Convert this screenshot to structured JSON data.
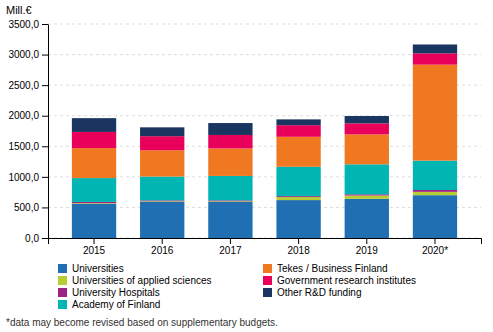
{
  "chart_data": {
    "type": "bar",
    "stacked": true,
    "y_label": "Mill.€",
    "categories": [
      "2015",
      "2016",
      "2017",
      "2018",
      "2019",
      "2020*"
    ],
    "series": [
      {
        "name": "Universities",
        "color": "#1f6fb2",
        "values": [
          560,
          590,
          590,
          620,
          640,
          700
        ]
      },
      {
        "name": "Universities of applied sciences",
        "color": "#b8cc34",
        "values": [
          10,
          10,
          10,
          50,
          55,
          55
        ]
      },
      {
        "name": "University Hospitals",
        "color": "#9b2483",
        "values": [
          20,
          15,
          15,
          15,
          20,
          30
        ]
      },
      {
        "name": "Academy of Finland",
        "color": "#00b5b2",
        "values": [
          390,
          390,
          400,
          480,
          490,
          480
        ]
      },
      {
        "name": "Tekes / Business Finland",
        "color": "#f07820",
        "values": [
          490,
          430,
          450,
          490,
          490,
          1570
        ]
      },
      {
        "name": "Government research institutes",
        "color": "#e8005a",
        "values": [
          265,
          230,
          220,
          190,
          180,
          185
        ]
      },
      {
        "name": "Other R&D funding",
        "color": "#1a3560",
        "values": [
          225,
          145,
          195,
          95,
          120,
          145
        ]
      }
    ],
    "ylim": [
      0,
      3500
    ],
    "yticks": [
      {
        "value": 0,
        "label": "0,0"
      },
      {
        "value": 500,
        "label": "500,0"
      },
      {
        "value": 1000,
        "label": "1000,0"
      },
      {
        "value": 1500,
        "label": "1500,0"
      },
      {
        "value": 2000,
        "label": "2000,0"
      },
      {
        "value": 2500,
        "label": "2500,0"
      },
      {
        "value": 3000,
        "label": "3000,0"
      },
      {
        "value": 3500,
        "label": "3500,0"
      }
    ],
    "grid": true,
    "legend": "bottom",
    "annotations": [
      "*data may become revised based on supplementary budgets."
    ]
  }
}
